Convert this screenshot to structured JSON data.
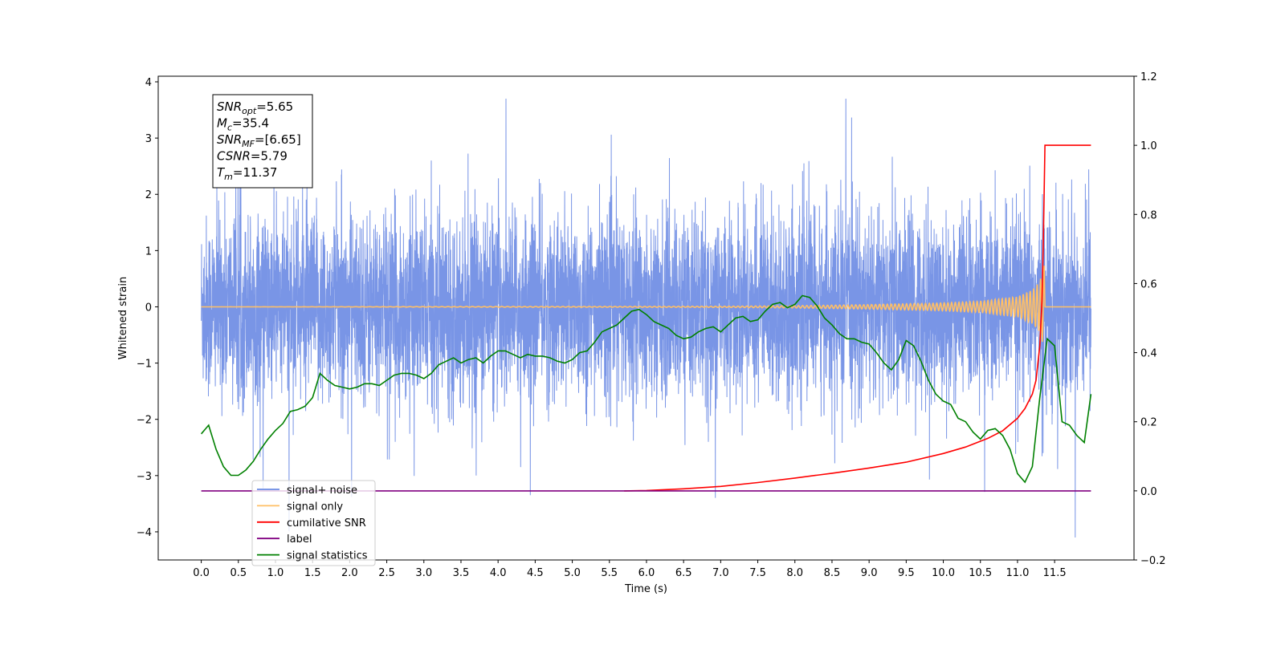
{
  "chart_data": {
    "type": "line",
    "xlabel": "Time (s)",
    "ylabel": "Whitened strain",
    "xlim": [
      -0.58,
      12.57
    ],
    "ylim": [
      -4.5,
      4.1
    ],
    "y2lim": [
      -0.2,
      1.2
    ],
    "x_ticks": [
      "0.0",
      "0.5",
      "1.0",
      "1.5",
      "2.0",
      "2.5",
      "3.0",
      "3.5",
      "4.0",
      "4.5",
      "5.0",
      "5.5",
      "6.0",
      "6.5",
      "7.0",
      "7.5",
      "8.0",
      "8.5",
      "9.0",
      "9.5",
      "10.0",
      "10.5",
      "11.0",
      "11.5"
    ],
    "y_ticks": [
      "4",
      "3",
      "2",
      "1",
      "0",
      "−1",
      "−2",
      "−3",
      "−4"
    ],
    "y2_ticks": [
      "1.2",
      "1.0",
      "0.8",
      "0.6",
      "0.4",
      "0.2",
      "0.0",
      "−0.2"
    ],
    "legend_position": "lower-left",
    "grid": false,
    "stats_box": {
      "lines": [
        {
          "sym": "SNR",
          "sub": "opt",
          "rest": "=5.65"
        },
        {
          "sym": "M",
          "sub": "c",
          "rest": "=35.4"
        },
        {
          "sym": "SNR",
          "sub": "MF",
          "rest": "=[6.65]"
        },
        {
          "sym": "CSNR",
          "sub": "",
          "rest": "=5.79"
        },
        {
          "sym": "T",
          "sub": "m",
          "rest": "=11.37"
        }
      ]
    },
    "legend": [
      {
        "label": "signal+ noise",
        "color": "#6A89E3"
      },
      {
        "label": "signal only",
        "color": "#FFBF66"
      },
      {
        "label": "cumilative SNR",
        "color": "#FF0000"
      },
      {
        "label": "label",
        "color": "#800080"
      },
      {
        "label": "signal statistics",
        "color": "#008000"
      }
    ],
    "series": [
      {
        "name": "signal+ noise",
        "axis": "left",
        "color": "#6A89E3",
        "description_range": [
          -4.1,
          3.7
        ],
        "approx_x_range": [
          0.0,
          11.99
        ],
        "envelope_typical": [
          -1.9,
          2.0
        ]
      },
      {
        "name": "signal only",
        "axis": "left",
        "color": "#FFBF66",
        "x": [
          0.0,
          7.0,
          8.0,
          9.0,
          10.0,
          10.5,
          11.0,
          11.2,
          11.3,
          11.37,
          11.4,
          11.99
        ],
        "amplitude": [
          0.0,
          0.01,
          0.02,
          0.04,
          0.07,
          0.1,
          0.18,
          0.3,
          0.45,
          0.8,
          0.0,
          0.0
        ]
      },
      {
        "name": "cumilative SNR",
        "axis": "right",
        "color": "#FF0000",
        "x": [
          5.7,
          6.0,
          6.5,
          7.0,
          7.5,
          8.0,
          8.5,
          9.0,
          9.5,
          10.0,
          10.3,
          10.6,
          10.8,
          11.0,
          11.1,
          11.2,
          11.25,
          11.3,
          11.33,
          11.35,
          11.37,
          11.99
        ],
        "y": [
          0.0,
          0.001,
          0.006,
          0.013,
          0.024,
          0.037,
          0.051,
          0.066,
          0.083,
          0.108,
          0.127,
          0.152,
          0.174,
          0.21,
          0.238,
          0.28,
          0.32,
          0.42,
          0.55,
          0.75,
          1.0,
          1.0
        ]
      },
      {
        "name": "label",
        "axis": "right",
        "color": "#800080",
        "x": [
          0.0,
          11.99
        ],
        "y": [
          0.0,
          0.0
        ]
      },
      {
        "name": "signal statistics",
        "axis": "right",
        "color": "#008000",
        "x": [
          0.0,
          0.1,
          0.2,
          0.3,
          0.4,
          0.5,
          0.6,
          0.7,
          0.8,
          0.9,
          1.0,
          1.1,
          1.2,
          1.3,
          1.4,
          1.5,
          1.6,
          1.7,
          1.8,
          1.9,
          2.0,
          2.1,
          2.2,
          2.3,
          2.4,
          2.5,
          2.6,
          2.7,
          2.8,
          2.9,
          3.0,
          3.1,
          3.2,
          3.3,
          3.4,
          3.5,
          3.6,
          3.7,
          3.8,
          3.9,
          4.0,
          4.1,
          4.2,
          4.3,
          4.4,
          4.5,
          4.6,
          4.7,
          4.8,
          4.9,
          5.0,
          5.1,
          5.2,
          5.3,
          5.4,
          5.5,
          5.6,
          5.7,
          5.8,
          5.9,
          6.0,
          6.1,
          6.2,
          6.3,
          6.4,
          6.5,
          6.6,
          6.7,
          6.8,
          6.9,
          7.0,
          7.1,
          7.2,
          7.3,
          7.4,
          7.5,
          7.6,
          7.7,
          7.8,
          7.9,
          8.0,
          8.1,
          8.2,
          8.3,
          8.4,
          8.5,
          8.6,
          8.7,
          8.8,
          8.9,
          9.0,
          9.1,
          9.2,
          9.3,
          9.4,
          9.5,
          9.6,
          9.7,
          9.8,
          9.9,
          10.0,
          10.1,
          10.2,
          10.3,
          10.4,
          10.5,
          10.6,
          10.7,
          10.8,
          10.9,
          11.0,
          11.1,
          11.2,
          11.3,
          11.4,
          11.5,
          11.6,
          11.7,
          11.8,
          11.9,
          11.99
        ],
        "y": [
          0.165,
          0.19,
          0.12,
          0.07,
          0.045,
          0.045,
          0.06,
          0.085,
          0.12,
          0.15,
          0.175,
          0.195,
          0.23,
          0.235,
          0.245,
          0.27,
          0.34,
          0.32,
          0.305,
          0.3,
          0.295,
          0.3,
          0.31,
          0.31,
          0.305,
          0.32,
          0.335,
          0.34,
          0.34,
          0.335,
          0.325,
          0.34,
          0.365,
          0.375,
          0.385,
          0.37,
          0.38,
          0.385,
          0.37,
          0.39,
          0.405,
          0.405,
          0.395,
          0.385,
          0.395,
          0.39,
          0.39,
          0.385,
          0.375,
          0.37,
          0.38,
          0.4,
          0.405,
          0.43,
          0.46,
          0.47,
          0.48,
          0.5,
          0.52,
          0.525,
          0.51,
          0.49,
          0.48,
          0.47,
          0.45,
          0.44,
          0.445,
          0.46,
          0.47,
          0.475,
          0.46,
          0.48,
          0.5,
          0.505,
          0.49,
          0.495,
          0.52,
          0.54,
          0.545,
          0.53,
          0.54,
          0.565,
          0.56,
          0.535,
          0.5,
          0.48,
          0.455,
          0.44,
          0.44,
          0.43,
          0.425,
          0.4,
          0.37,
          0.35,
          0.38,
          0.435,
          0.42,
          0.375,
          0.32,
          0.28,
          0.26,
          0.25,
          0.21,
          0.2,
          0.17,
          0.15,
          0.175,
          0.18,
          0.16,
          0.12,
          0.05,
          0.025,
          0.07,
          0.27,
          0.44,
          0.42,
          0.2,
          0.19,
          0.16,
          0.14,
          0.28
        ]
      }
    ]
  }
}
